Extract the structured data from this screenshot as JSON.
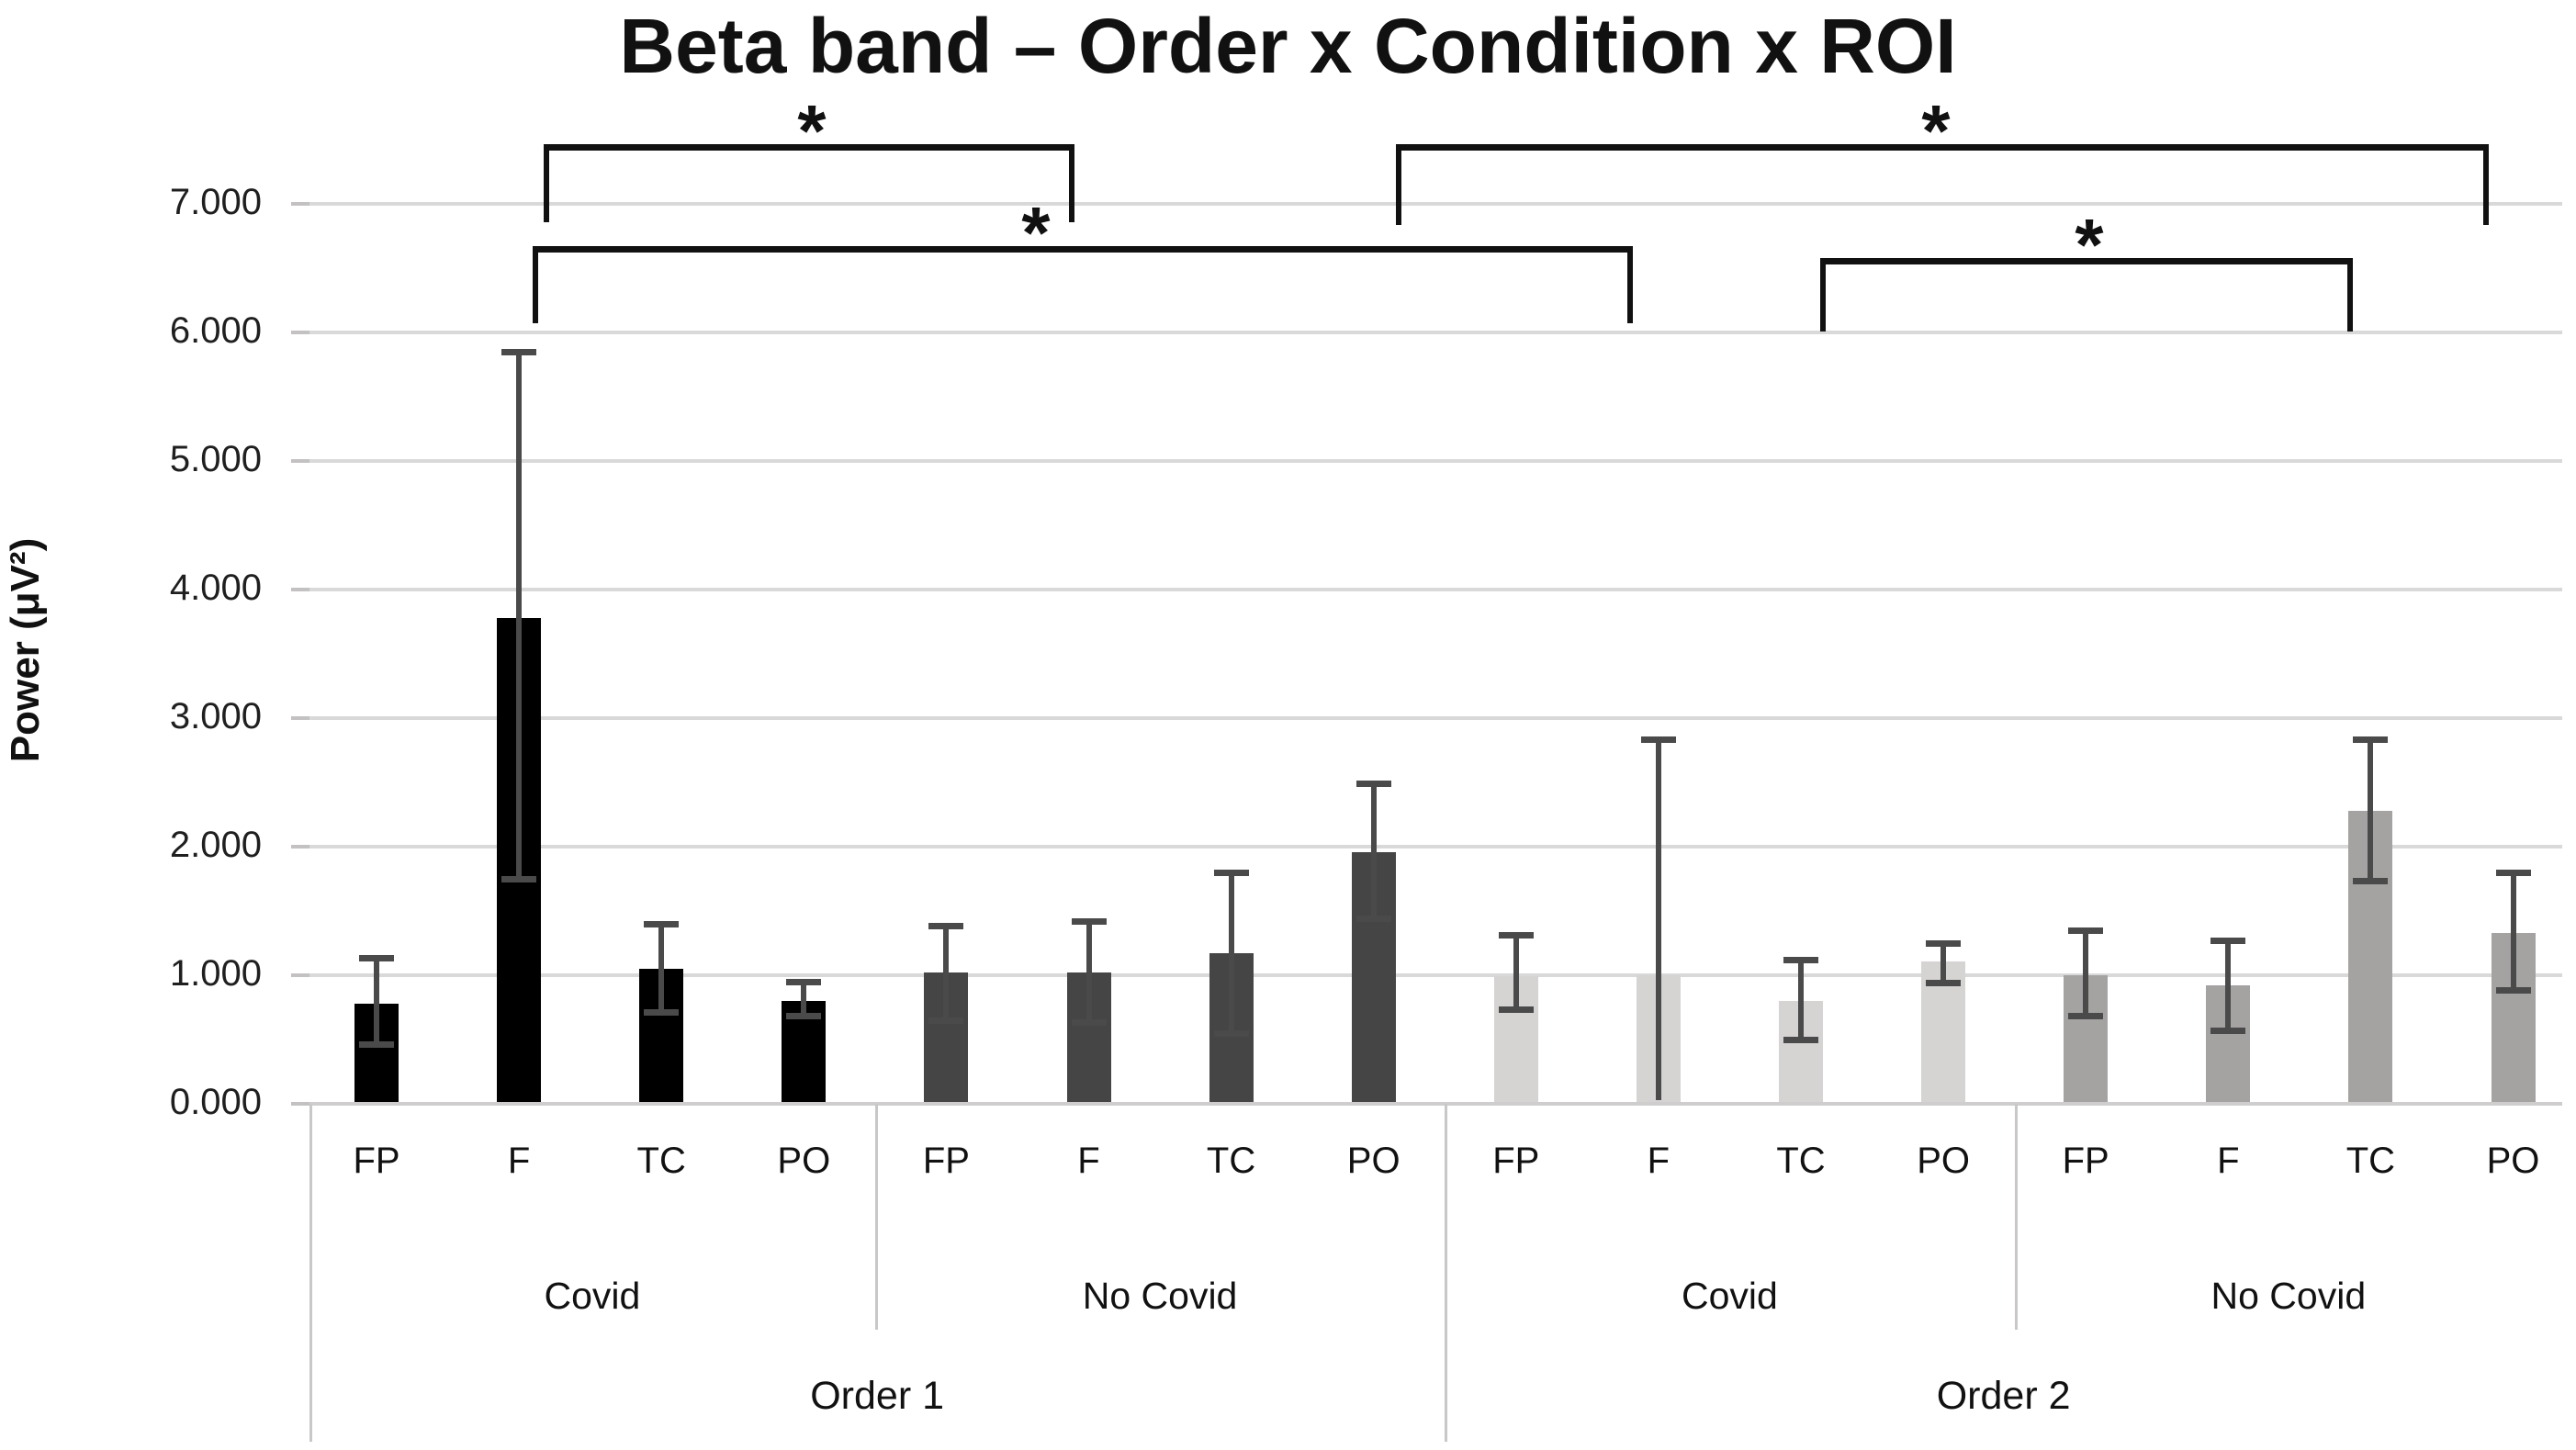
{
  "title": "Beta band – Order x Condition x ROI",
  "y_axis": {
    "label": "Power (μV²)",
    "tick_labels": [
      "0.000",
      "1.000",
      "2.000",
      "3.000",
      "4.000",
      "5.000",
      "6.000",
      "7.000"
    ]
  },
  "chart_data": {
    "type": "bar",
    "title": "Beta band – Order x Condition x ROI",
    "xlabel": "",
    "ylabel": "Power (μV²)",
    "ylim": [
      0,
      7
    ],
    "ytick_step": 1,
    "grid": "horizontal",
    "legend": "none",
    "categories_hierarchy": [
      "Order",
      "Condition",
      "ROI"
    ],
    "orders": [
      {
        "label": "Order 1",
        "conditions": [
          {
            "label": "Covid",
            "color": "#000000",
            "bars": [
              {
                "roi": "FP",
                "value": 0.78,
                "err_low": 0.46,
                "err_high": 1.13
              },
              {
                "roi": "F",
                "value": 3.78,
                "err_low": 1.75,
                "err_high": 5.85
              },
              {
                "roi": "TC",
                "value": 1.05,
                "err_low": 0.71,
                "err_high": 1.4
              },
              {
                "roi": "PO",
                "value": 0.8,
                "err_low": 0.68,
                "err_high": 0.95
              }
            ]
          },
          {
            "label": "No Covid",
            "color": "#454545",
            "bars": [
              {
                "roi": "FP",
                "value": 1.02,
                "err_low": 0.65,
                "err_high": 1.38
              },
              {
                "roi": "F",
                "value": 1.02,
                "err_low": 0.63,
                "err_high": 1.42
              },
              {
                "roi": "TC",
                "value": 1.17,
                "err_low": 0.55,
                "err_high": 1.8
              },
              {
                "roi": "PO",
                "value": 1.96,
                "err_low": 1.44,
                "err_high": 2.49
              }
            ]
          }
        ]
      },
      {
        "label": "Order 2",
        "conditions": [
          {
            "label": "Covid",
            "color": "#d6d3d3",
            "bars": [
              {
                "roi": "FP",
                "value": 0.99,
                "err_low": 0.73,
                "err_high": 1.31
              },
              {
                "roi": "F",
                "value": 1.0,
                "err_low": 0.03,
                "err_high": 2.83,
                "cap_low": false
              },
              {
                "roi": "TC",
                "value": 0.8,
                "err_low": 0.5,
                "err_high": 1.12
              },
              {
                "roi": "PO",
                "value": 1.11,
                "err_low": 0.94,
                "err_high": 1.25
              }
            ]
          },
          {
            "label": "No Covid",
            "color": "#a5a2a2",
            "bars": [
              {
                "roi": "FP",
                "value": 1.0,
                "err_low": 0.68,
                "err_high": 1.35
              },
              {
                "roi": "F",
                "value": 0.92,
                "err_low": 0.57,
                "err_high": 1.27
              },
              {
                "roi": "TC",
                "value": 2.28,
                "err_low": 1.73,
                "err_high": 2.83
              },
              {
                "roi": "PO",
                "value": 1.33,
                "err_low": 0.88,
                "err_high": 1.8
              }
            ]
          }
        ]
      }
    ],
    "significance_brackets": [
      {
        "star": "*",
        "from": "Order 1 / Covid / F",
        "to": "Order 1 / No Covid / F",
        "x1": 592,
        "x2": 1170,
        "line_y": 157,
        "leg_len": 85,
        "star_x": 884
      },
      {
        "star": "*",
        "from": "Order 1 / Covid / F",
        "to": "Order 2 / Covid / F",
        "x1": 580,
        "x2": 1778,
        "line_y": 268,
        "leg_len": 84,
        "star_x": 1128
      },
      {
        "star": "*",
        "from": "Order 1 / No Covid / PO",
        "to": "Order 2 / No Covid / PO",
        "x1": 1520,
        "x2": 2710,
        "line_y": 157,
        "leg_len": 88,
        "star_x": 2108
      },
      {
        "star": "*",
        "from": "Order 2 / Covid / TC",
        "to": "Order 2 / No Covid / TC",
        "x1": 1982,
        "x2": 2562,
        "line_y": 281,
        "leg_len": 80,
        "star_x": 2275
      }
    ],
    "colors": {
      "bar_series": [
        "#000000",
        "#454545",
        "#d6d3d3",
        "#a5a2a2"
      ],
      "error_bar": "#4a4a4a",
      "gridline": "#d9d9d9",
      "axis_table_line": "#c9c7c7",
      "bracket": "#111111",
      "text": "#1a1a1a"
    }
  }
}
